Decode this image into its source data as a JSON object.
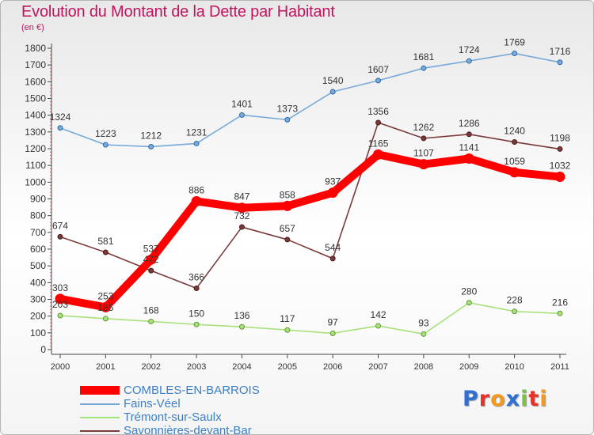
{
  "chart_data": {
    "type": "line",
    "title": "Evolution du Montant de la Dette par Habitant",
    "unit": "(en €)",
    "x": [
      "2000",
      "2001",
      "2002",
      "2003",
      "2004",
      "2005",
      "2006",
      "2007",
      "2008",
      "2009",
      "2010",
      "2011"
    ],
    "ylim": [
      0,
      1800
    ],
    "yticks": [
      0,
      100,
      200,
      300,
      400,
      500,
      600,
      700,
      800,
      900,
      1000,
      1100,
      1200,
      1300,
      1400,
      1500,
      1600,
      1700,
      1800
    ],
    "grid": false,
    "legend_position": "bottom-left",
    "series": [
      {
        "name": "COMBLES-EN-BARROIS",
        "color": "#ff0000",
        "values": [
          303,
          253,
          537,
          886,
          847,
          858,
          937,
          1165,
          1107,
          1141,
          1059,
          1032
        ]
      },
      {
        "name": "Fains-Véel",
        "color": "#77aad8",
        "values": [
          1324,
          1223,
          1212,
          1231,
          1401,
          1373,
          1540,
          1607,
          1681,
          1724,
          1769,
          1716
        ]
      },
      {
        "name": "Trémont-sur-Saulx",
        "color": "#a8e07a",
        "values": [
          203,
          185,
          168,
          150,
          136,
          117,
          97,
          142,
          93,
          280,
          228,
          216
        ]
      },
      {
        "name": "Savonnières-devant-Bar",
        "color": "#7b3a3a",
        "values": [
          674,
          581,
          472,
          366,
          732,
          657,
          544,
          1356,
          1262,
          1286,
          1240,
          1198
        ]
      }
    ]
  },
  "logo": {
    "text": "Proxiti",
    "letter_colors": [
      "#2f6fd0",
      "#e63329",
      "#f39a1e",
      "#2f6fd0",
      "#7cc242",
      "#e63329",
      "#f39a1e"
    ]
  }
}
